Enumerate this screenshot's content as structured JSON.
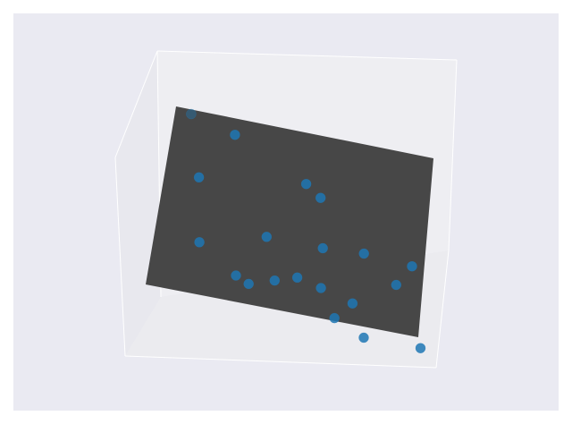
{
  "chart_data": {
    "type": "scatter",
    "title": "",
    "grid": false,
    "colors": {
      "figure_bg": "#ffffff",
      "axes_bg": "#eaeaf2",
      "pane_back": "#eeeef2",
      "pane_side": "#e8e8ee",
      "pane_floor": "#ebebef",
      "pane_edge": "#ffffff",
      "plane": "#474747",
      "marker": "#1f77b4"
    },
    "plane": {
      "corners": [
        [
          0.0,
          0.0,
          0.0
        ],
        [
          1.0,
          0.0,
          0.0
        ],
        [
          1.0,
          1.0,
          0.0
        ],
        [
          0.0,
          1.0,
          0.0
        ]
      ]
    },
    "points": [
      {
        "x": 0.09,
        "y": 0.97,
        "z": 1.0
      },
      {
        "x": 0.24,
        "y": 0.91,
        "z": 0.1
      },
      {
        "x": 0.53,
        "y": 0.72,
        "z": 0.05
      },
      {
        "x": 0.59,
        "y": 0.66,
        "z": 0.05
      },
      {
        "x": 0.13,
        "y": 0.64,
        "z": 0.05
      },
      {
        "x": 0.41,
        "y": 0.39,
        "z": 0.08
      },
      {
        "x": 0.62,
        "y": 0.39,
        "z": 0.15
      },
      {
        "x": 0.77,
        "y": 0.41,
        "z": 0.35
      },
      {
        "x": 0.95,
        "y": 0.39,
        "z": 0.25
      },
      {
        "x": 0.17,
        "y": 0.29,
        "z": 0.1
      },
      {
        "x": 0.9,
        "y": 0.27,
        "z": 0.18
      },
      {
        "x": 0.54,
        "y": 0.2,
        "z": 0.05
      },
      {
        "x": 0.32,
        "y": 0.15,
        "z": 0.15
      },
      {
        "x": 0.46,
        "y": 0.16,
        "z": 0.05
      },
      {
        "x": 0.63,
        "y": 0.17,
        "z": 0.1
      },
      {
        "x": 0.75,
        "y": 0.12,
        "z": 0.1
      },
      {
        "x": 0.37,
        "y": 0.12,
        "z": 0.2
      },
      {
        "x": 0.69,
        "y": 0.03,
        "z": 0.3
      },
      {
        "x": 0.8,
        "y": -0.04,
        "z": 0.4
      },
      {
        "x": 1.0,
        "y": -0.03,
        "z": 0.55
      }
    ]
  }
}
